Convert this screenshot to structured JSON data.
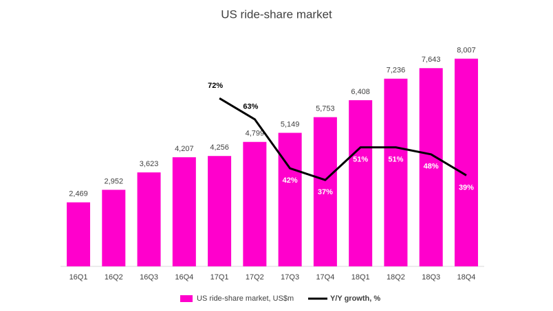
{
  "chart_data": {
    "type": "bar_line",
    "title": "US ride-share market",
    "categories": [
      "16Q1",
      "16Q2",
      "16Q3",
      "16Q4",
      "17Q1",
      "17Q2",
      "17Q3",
      "17Q4",
      "18Q1",
      "18Q2",
      "18Q3",
      "18Q4"
    ],
    "series": [
      {
        "name": "US ride-share market, US$m",
        "type": "bar",
        "color": "#ff00cc",
        "values": [
          2469,
          2952,
          3623,
          4207,
          4256,
          4799,
          5149,
          5753,
          6408,
          7236,
          7643,
          8007
        ],
        "value_labels": [
          "2,469",
          "2,952",
          "3,623",
          "4,207",
          "4,256",
          "4,799",
          "5,149",
          "5,753",
          "6,408",
          "7,236",
          "7,643",
          "8,007"
        ]
      },
      {
        "name": "Y/Y growth, %",
        "type": "line",
        "axis": "y2",
        "color": "#000000",
        "values": [
          null,
          null,
          null,
          null,
          72,
          63,
          42,
          37,
          51,
          51,
          48,
          39
        ],
        "value_labels": [
          null,
          null,
          null,
          null,
          "72%",
          "63%",
          "42%",
          "37%",
          "51%",
          "51%",
          "48%",
          "39%"
        ]
      }
    ],
    "ylim": [
      0,
      9000
    ],
    "y2lim": [
      0,
      100
    ]
  }
}
